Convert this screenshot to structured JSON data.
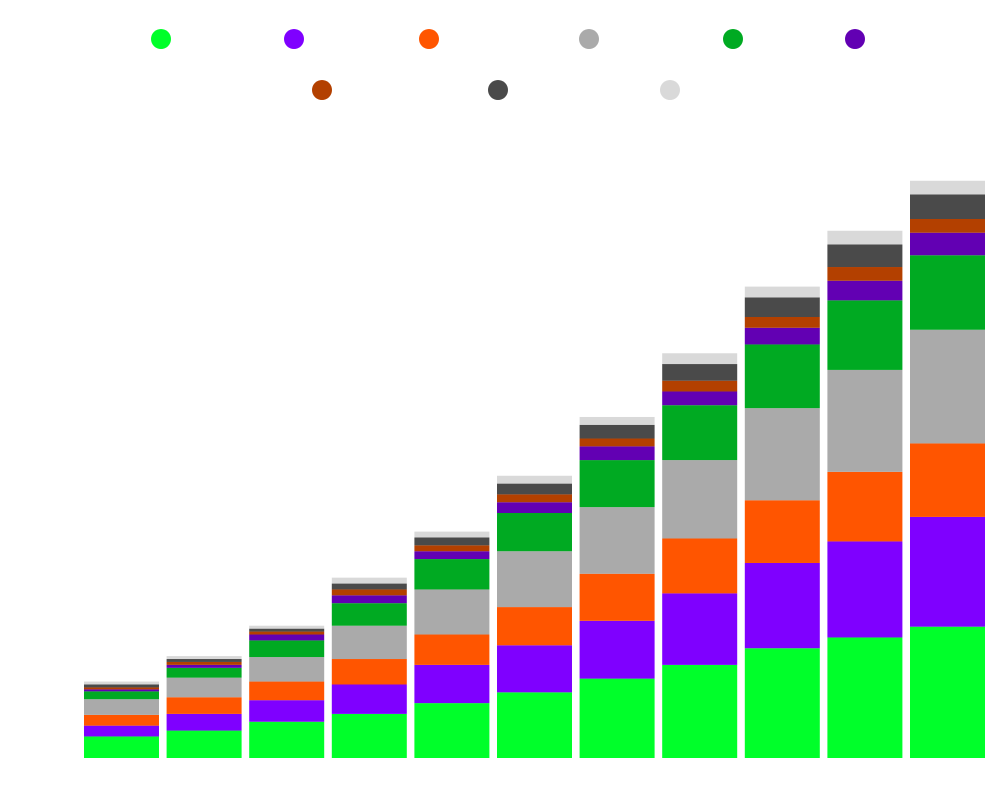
{
  "chart_data": {
    "type": "bar",
    "stacked": true,
    "title": "",
    "xlabel": "",
    "ylabel": "",
    "ylim": [
      0,
      600
    ],
    "grid": false,
    "legend_position": "top",
    "categories": [
      "",
      "",
      "",
      "",
      "",
      "",
      "",
      "",
      "",
      "",
      ""
    ],
    "series": [
      {
        "color": "#00ff2a",
        "values": [
          22,
          28,
          37,
          45,
          56,
          67,
          81,
          95,
          112,
          123,
          134
        ]
      },
      {
        "color": "#7f00ff",
        "values": [
          11,
          17,
          22,
          30,
          39,
          48,
          59,
          73,
          87,
          98,
          112
        ]
      },
      {
        "color": "#ff5500",
        "values": [
          11,
          17,
          19,
          26,
          31,
          39,
          48,
          56,
          64,
          71,
          75
        ]
      },
      {
        "color": "#aaaaaa",
        "values": [
          16,
          20,
          25,
          34,
          46,
          57,
          68,
          80,
          94,
          104,
          116
        ]
      },
      {
        "color": "#00aa22",
        "values": [
          8,
          10,
          17,
          23,
          31,
          39,
          48,
          56,
          65,
          71,
          76
        ]
      },
      {
        "color": "#6200b3",
        "values": [
          2,
          3,
          6,
          8,
          8,
          11,
          14,
          14,
          17,
          20,
          23
        ]
      },
      {
        "color": "#b34000",
        "values": [
          2,
          3,
          3,
          6,
          6,
          8,
          8,
          11,
          11,
          14,
          14
        ]
      },
      {
        "color": "#4a4a4a",
        "values": [
          3,
          3,
          3,
          6,
          8,
          11,
          14,
          17,
          20,
          23,
          25
        ]
      },
      {
        "color": "#d9d9d9",
        "values": [
          3,
          3,
          3,
          6,
          6,
          8,
          8,
          11,
          11,
          14,
          14
        ]
      }
    ]
  }
}
